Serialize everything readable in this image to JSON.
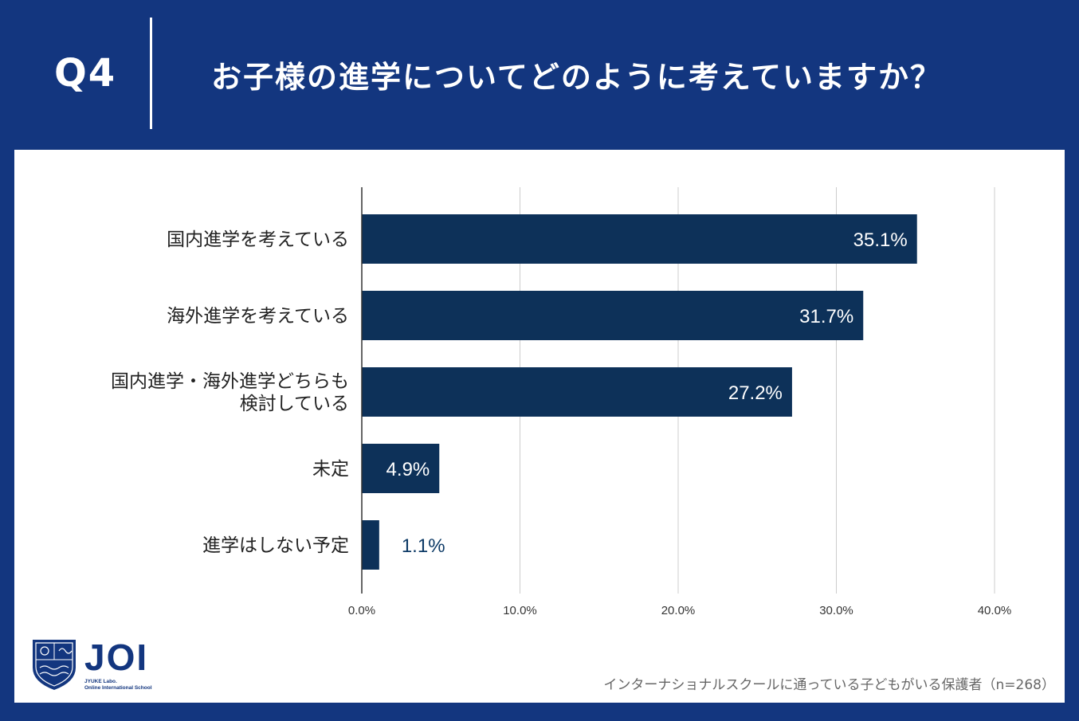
{
  "header": {
    "question_number": "Q4",
    "title": "お子様の進学についてどのように考えていますか？"
  },
  "logo": {
    "name": "JOI",
    "sub_line1": "JYUKE Labo.",
    "sub_line2": "Online International School"
  },
  "footnote": "インターナショナルスクールに通っている子どもがいる保護者（n=268）",
  "colors": {
    "background": "#13367f",
    "bar": "#0d3159",
    "panel": "#ffffff"
  },
  "chart_data": {
    "type": "bar",
    "orientation": "horizontal",
    "title": "お子様の進学についてどのように考えていますか？",
    "categories": [
      [
        "国内進学を考えている"
      ],
      [
        "海外進学を考えている"
      ],
      [
        "国内進学・海外進学どちらも",
        "検討している"
      ],
      [
        "未定"
      ],
      [
        "進学はしない予定"
      ]
    ],
    "values": [
      35.1,
      31.7,
      27.2,
      4.9,
      1.1
    ],
    "value_labels": [
      "35.1%",
      "31.7%",
      "27.2%",
      "4.9%",
      "1.1%"
    ],
    "xlim": [
      0,
      40
    ],
    "xticks": [
      0,
      10,
      20,
      30,
      40
    ],
    "xtick_labels": [
      "0.0%",
      "10.0%",
      "20.0%",
      "30.0%",
      "40.0%"
    ],
    "grid": true,
    "xlabel": "",
    "ylabel": ""
  }
}
